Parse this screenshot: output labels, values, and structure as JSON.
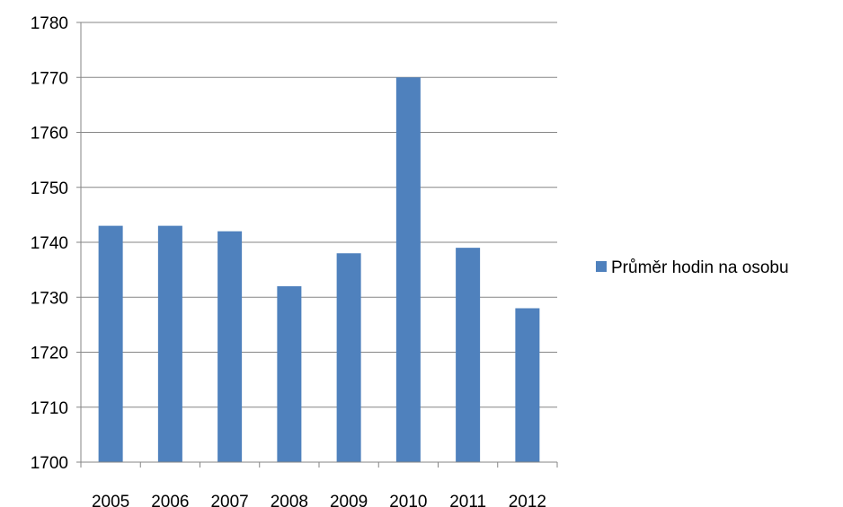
{
  "chart_data": {
    "type": "bar",
    "title": "",
    "xlabel": "",
    "ylabel": "",
    "categories": [
      "2005",
      "2006",
      "2007",
      "2008",
      "2009",
      "2010",
      "2011",
      "2012"
    ],
    "series": [
      {
        "name": "Průměr hodin na osobu",
        "values": [
          1743,
          1743,
          1742,
          1732,
          1738,
          1770,
          1739,
          1728
        ],
        "color": "#4f81bd"
      }
    ],
    "ylim": [
      1700,
      1780
    ],
    "yticks": [
      1700,
      1710,
      1720,
      1730,
      1740,
      1750,
      1760,
      1770,
      1780
    ],
    "grid": true,
    "legend": "right"
  }
}
